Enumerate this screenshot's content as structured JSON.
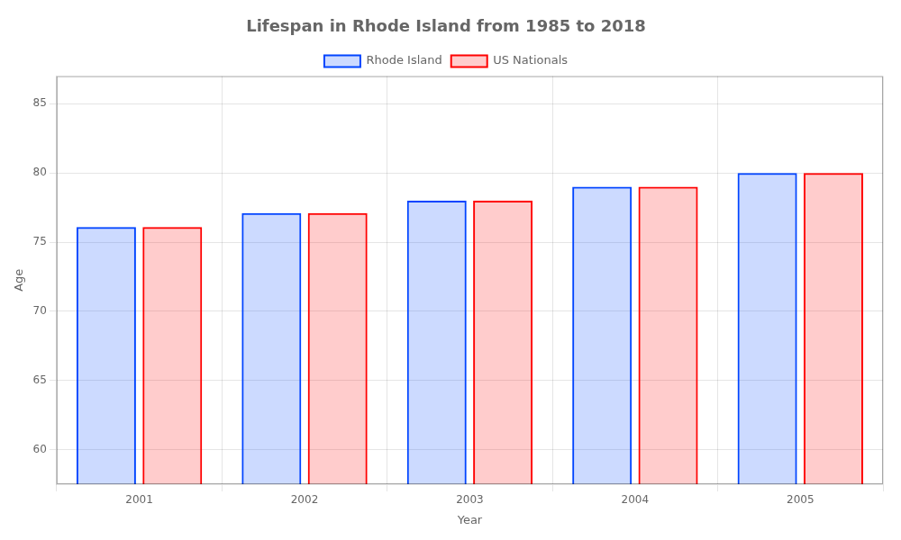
{
  "chart_data": {
    "type": "bar",
    "title": "Lifespan in Rhode Island from 1985 to 2018",
    "xlabel": "Year",
    "ylabel": "Age",
    "categories": [
      "2001",
      "2002",
      "2003",
      "2004",
      "2005"
    ],
    "series": [
      {
        "name": "Rhode Island",
        "color": "#0044ff",
        "values": [
          76.1,
          77.1,
          78.0,
          79.0,
          80.0
        ]
      },
      {
        "name": "US Nationals",
        "color": "#ff0000",
        "values": [
          76.1,
          77.1,
          78.0,
          79.0,
          80.0
        ]
      }
    ],
    "ylim": [
      57.5,
      87
    ],
    "yticks": [
      60,
      65,
      70,
      75,
      80,
      85
    ],
    "grid": true,
    "legend": "top"
  }
}
